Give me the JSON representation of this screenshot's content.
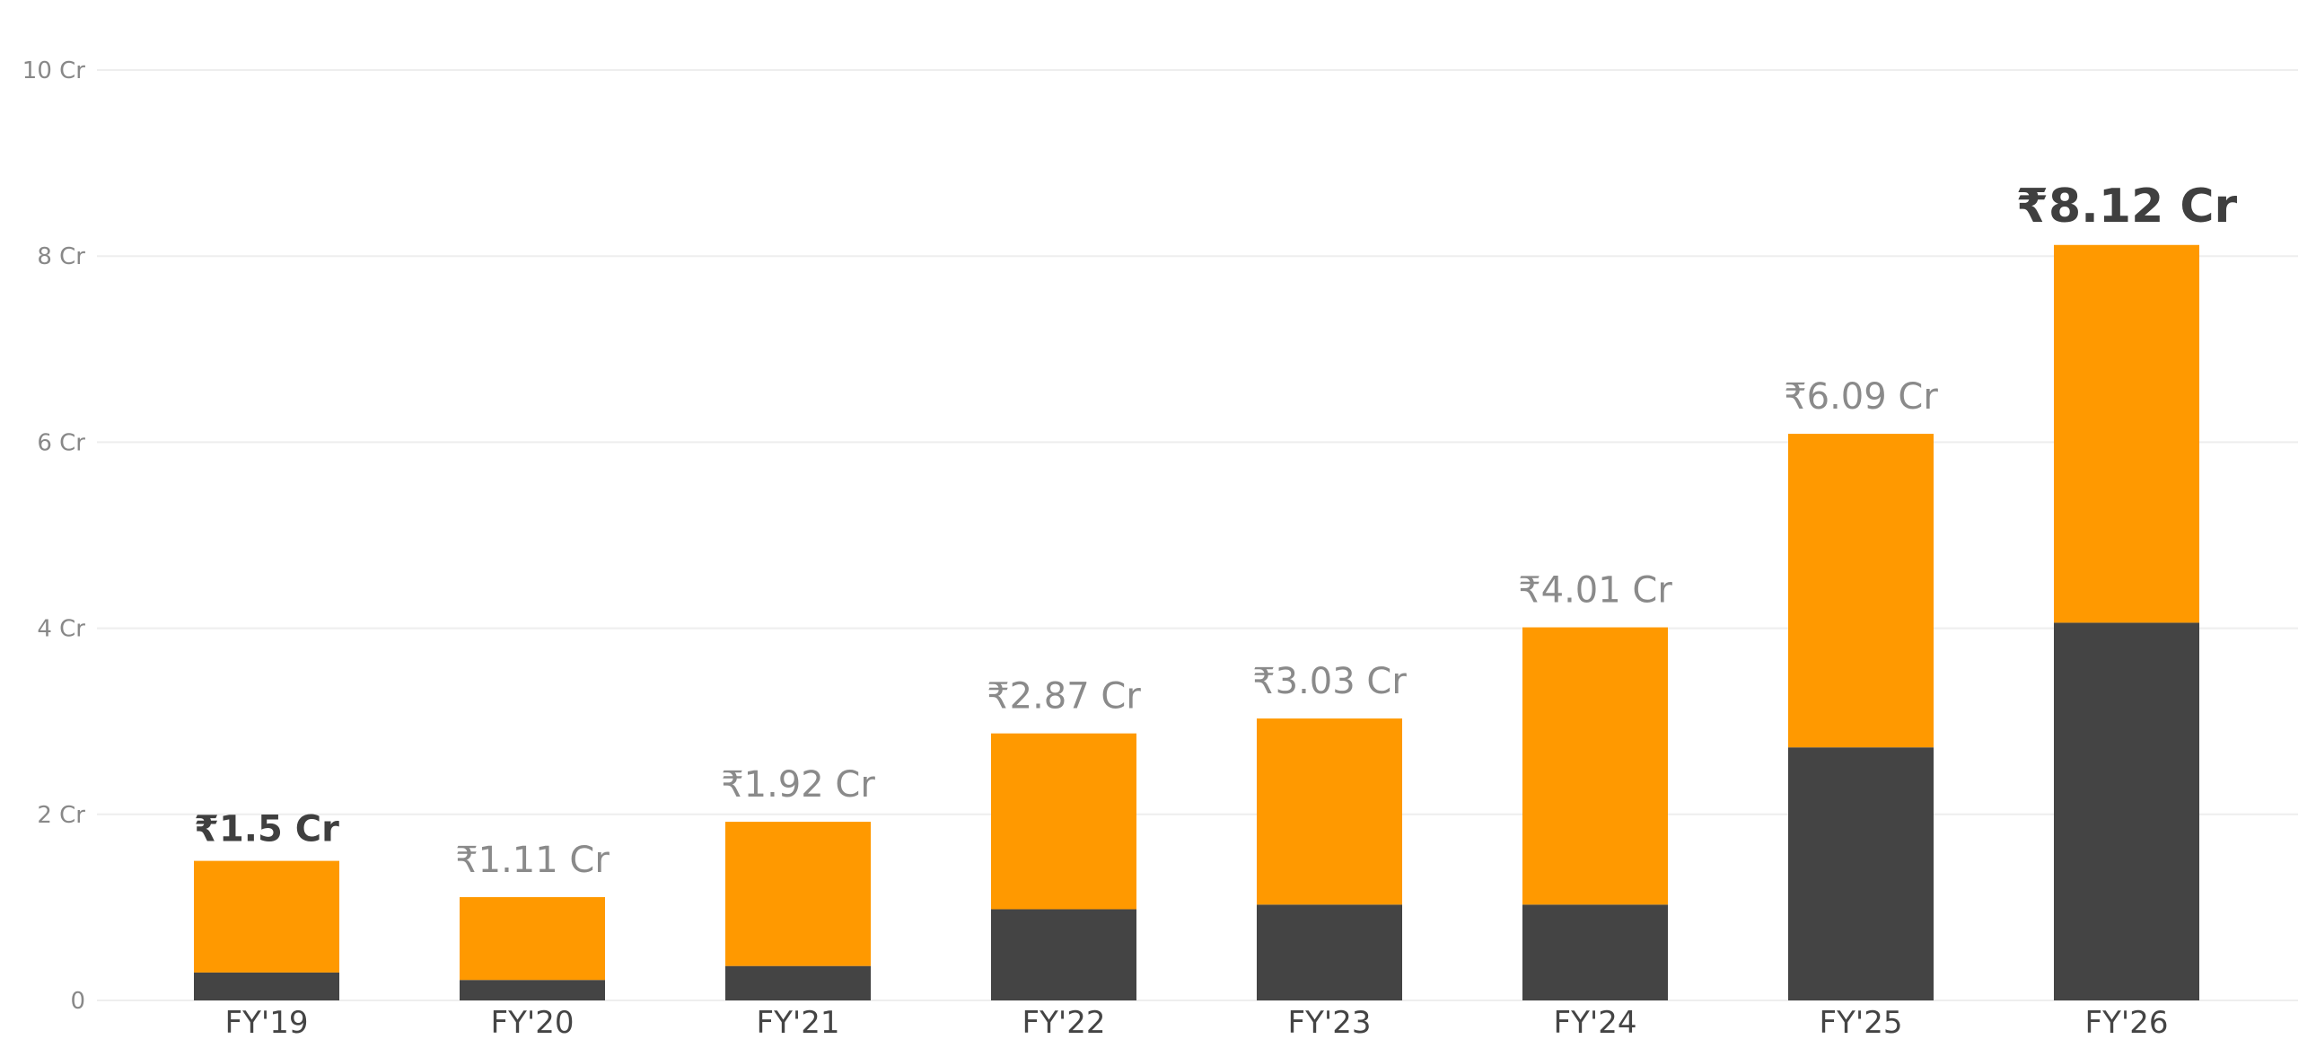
{
  "chart_data": {
    "type": "bar",
    "stacked": true,
    "categories": [
      "FY'19",
      "FY'20",
      "FY'21",
      "FY'22",
      "FY'23",
      "FY'24",
      "FY'25",
      "FY'26"
    ],
    "series": [
      {
        "values": [
          0.3,
          0.22,
          0.37,
          0.98,
          1.03,
          1.03,
          2.72,
          4.06
        ],
        "color": "#444444"
      },
      {
        "values": [
          1.2,
          0.89,
          1.55,
          1.89,
          2.0,
          2.98,
          3.37,
          4.06
        ],
        "color": "#FF9900"
      }
    ],
    "totals": [
      1.5,
      1.11,
      1.92,
      2.87,
      3.03,
      4.01,
      6.09,
      8.12
    ],
    "total_labels": [
      "₹1.5 Cr",
      "₹1.11 Cr",
      "₹1.92 Cr",
      "₹2.87 Cr",
      "₹3.03 Cr",
      "₹4.01 Cr",
      "₹6.09 Cr",
      "₹8.12 Cr"
    ],
    "highlighted": [
      0,
      7
    ],
    "yticks": [
      0,
      2,
      4,
      6,
      8,
      10
    ],
    "ytick_labels": [
      "0",
      "2 Cr",
      "4 Cr",
      "6 Cr",
      "8 Cr",
      "10 Cr"
    ],
    "ylim": [
      0,
      10
    ],
    "grid": true,
    "xlabel": "",
    "ylabel": "",
    "title": ""
  }
}
